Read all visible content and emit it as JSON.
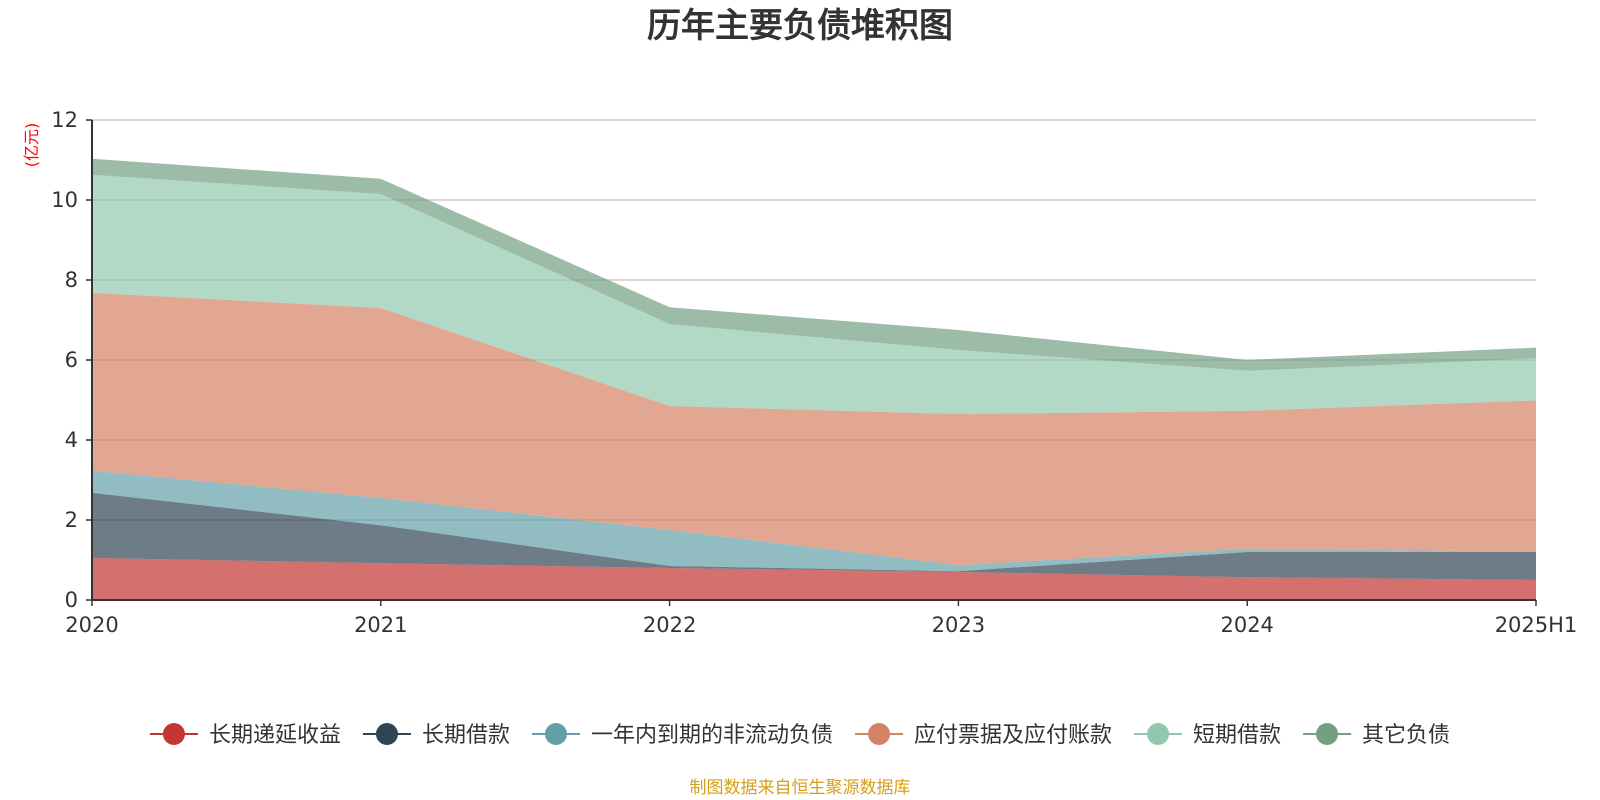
{
  "chart_data": {
    "type": "area",
    "title": "历年主要负债堆积图",
    "ylabel": "(亿元)",
    "ylim": [
      0,
      12
    ],
    "yticks": [
      0,
      2,
      4,
      6,
      8,
      10,
      12
    ],
    "categories": [
      "2020",
      "2021",
      "2022",
      "2023",
      "2024",
      "2025H1"
    ],
    "stacked": true,
    "grid": true,
    "legend_position": "bottom",
    "series": [
      {
        "name": "长期递延收益",
        "color": "#c23531",
        "values": [
          1.05,
          0.92,
          0.8,
          0.7,
          0.57,
          0.5
        ]
      },
      {
        "name": "长期借款",
        "color": "#2f4554",
        "values": [
          1.63,
          0.95,
          0.05,
          0.02,
          0.63,
          0.7
        ]
      },
      {
        "name": "一年内到期的非流动负债",
        "color": "#61a0a8",
        "values": [
          0.55,
          0.68,
          0.9,
          0.15,
          0.08,
          0.01
        ]
      },
      {
        "name": "应付票据及应付账款",
        "color": "#d48265",
        "values": [
          4.45,
          4.75,
          3.1,
          3.78,
          3.45,
          3.78
        ]
      },
      {
        "name": "短期借款",
        "color": "#91c7ae",
        "values": [
          2.95,
          2.85,
          2.05,
          1.6,
          1.0,
          1.05
        ]
      },
      {
        "name": "其它负债",
        "color": "#749f83",
        "values": [
          0.4,
          0.38,
          0.42,
          0.5,
          0.27,
          0.27
        ]
      }
    ]
  },
  "source": {
    "text": "制图数据来自恒生聚源数据库",
    "color": "#d4a017"
  },
  "colors": {
    "axis": "#333333",
    "grid": "#cccccc",
    "unit": "#ff0000"
  }
}
